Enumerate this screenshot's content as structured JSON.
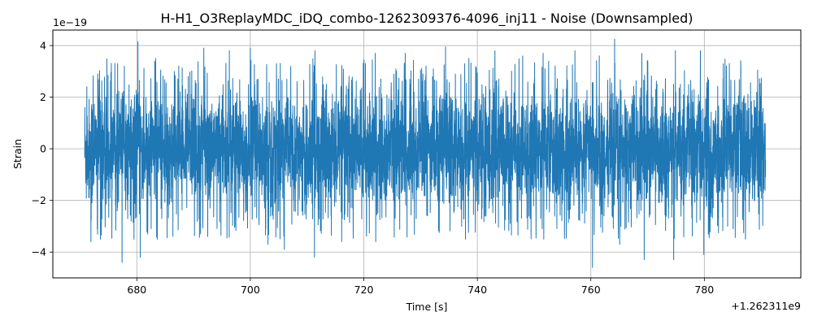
{
  "chart_data": {
    "type": "line",
    "title": "H-H1_O3ReplayMDC_iDQ_combo-1262309376-4096_inj11 - Noise (Downsampled)",
    "xlabel": "Time [s]",
    "ylabel": "Strain",
    "x_offset_label": "+1.262311e9",
    "y_scale_label": "1e−19",
    "xlim": [
      665.2,
      797.0
    ],
    "ylim": [
      -5.0,
      4.6
    ],
    "x_ticks": [
      680,
      700,
      720,
      740,
      760,
      780
    ],
    "x_tick_labels": [
      "680",
      "700",
      "720",
      "740",
      "760",
      "780"
    ],
    "y_ticks": [
      -4,
      -2,
      0,
      2,
      4
    ],
    "y_tick_labels": [
      "−4",
      "−2",
      "0",
      "2",
      "4"
    ],
    "grid": true,
    "series": [
      {
        "color": "#1f77b4",
        "x_start": 670.8,
        "x_end": 790.8,
        "envelope_upper": 2.6,
        "envelope_lower": -2.6,
        "peaks": [
          {
            "x": 671.2,
            "y": 2.4
          },
          {
            "x": 673.1,
            "y": 2.9
          },
          {
            "x": 675.6,
            "y": 3.0
          },
          {
            "x": 677.8,
            "y": 3.2
          },
          {
            "x": 680.2,
            "y": 4.15
          },
          {
            "x": 683.3,
            "y": 3.5
          },
          {
            "x": 687.4,
            "y": 3.2
          },
          {
            "x": 691.8,
            "y": 3.9
          },
          {
            "x": 696.3,
            "y": 3.8
          },
          {
            "x": 700.0,
            "y": 3.9
          },
          {
            "x": 704.6,
            "y": 3.3
          },
          {
            "x": 711.4,
            "y": 3.8
          },
          {
            "x": 716.2,
            "y": 3.6
          },
          {
            "x": 722.0,
            "y": 3.7
          },
          {
            "x": 727.3,
            "y": 3.7
          },
          {
            "x": 734.4,
            "y": 3.95
          },
          {
            "x": 738.5,
            "y": 3.5
          },
          {
            "x": 743.1,
            "y": 3.8
          },
          {
            "x": 748.0,
            "y": 3.6
          },
          {
            "x": 751.6,
            "y": 3.7
          },
          {
            "x": 757.2,
            "y": 3.8
          },
          {
            "x": 761.5,
            "y": 3.6
          },
          {
            "x": 764.2,
            "y": 4.25
          },
          {
            "x": 769.0,
            "y": 3.7
          },
          {
            "x": 774.9,
            "y": 3.8
          },
          {
            "x": 779.3,
            "y": 3.8
          },
          {
            "x": 784.4,
            "y": 3.3
          },
          {
            "x": 789.4,
            "y": 2.3
          }
        ],
        "troughs": [
          {
            "x": 671.9,
            "y": -3.6
          },
          {
            "x": 673.6,
            "y": -3.5
          },
          {
            "x": 677.4,
            "y": -4.4
          },
          {
            "x": 679.5,
            "y": -3.5
          },
          {
            "x": 680.6,
            "y": -4.2
          },
          {
            "x": 683.6,
            "y": -3.5
          },
          {
            "x": 692.5,
            "y": -3.4
          },
          {
            "x": 697.4,
            "y": -3.0
          },
          {
            "x": 703.1,
            "y": -3.7
          },
          {
            "x": 706.0,
            "y": -3.9
          },
          {
            "x": 711.3,
            "y": -4.2
          },
          {
            "x": 716.1,
            "y": -3.6
          },
          {
            "x": 722.1,
            "y": -3.6
          },
          {
            "x": 730.2,
            "y": -3.6
          },
          {
            "x": 737.9,
            "y": -3.5
          },
          {
            "x": 742.1,
            "y": -3.6
          },
          {
            "x": 751.7,
            "y": -3.5
          },
          {
            "x": 760.3,
            "y": -4.6
          },
          {
            "x": 765.1,
            "y": -3.7
          },
          {
            "x": 769.4,
            "y": -4.3
          },
          {
            "x": 774.6,
            "y": -4.3
          },
          {
            "x": 779.9,
            "y": -4.1
          },
          {
            "x": 784.1,
            "y": -3.0
          },
          {
            "x": 789.6,
            "y": -2.3
          }
        ]
      }
    ]
  }
}
